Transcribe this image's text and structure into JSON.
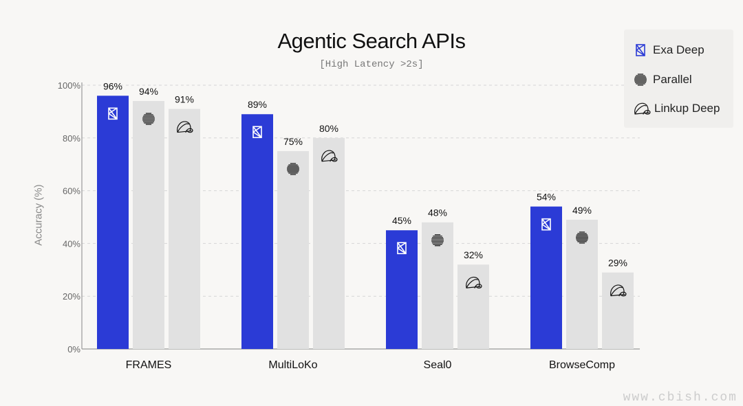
{
  "chart_data": {
    "type": "bar",
    "title": "Agentic Search APIs",
    "subtitle": "[High Latency >2s]",
    "xlabel": "",
    "ylabel": "Accuracy (%)",
    "ylim": [
      0,
      100
    ],
    "yticks": [
      "0%",
      "20%",
      "40%",
      "60%",
      "80%",
      "100%"
    ],
    "grid": true,
    "legend_position": "top-right",
    "categories": [
      "FRAMES",
      "MultiLoKo",
      "Seal0",
      "BrowseComp"
    ],
    "series": [
      {
        "name": "Exa Deep",
        "values": [
          96,
          89,
          45,
          54
        ],
        "labels": [
          "96%",
          "89%",
          "45%",
          "54%"
        ],
        "color": "#2b3bd6",
        "icon": "exa-hourglass-icon"
      },
      {
        "name": "Parallel",
        "values": [
          94,
          75,
          48,
          49
        ],
        "labels": [
          "94%",
          "75%",
          "48%",
          "49%"
        ],
        "color": "#e1e1e1",
        "icon": "parallel-striped-globe-icon"
      },
      {
        "name": "Linkup Deep",
        "values": [
          91,
          80,
          32,
          29
        ],
        "labels": [
          "91%",
          "80%",
          "32%",
          "29%"
        ],
        "color": "#e1e1e1",
        "icon": "linkup-arc-icon"
      }
    ]
  },
  "watermark": "www.cbish.com"
}
